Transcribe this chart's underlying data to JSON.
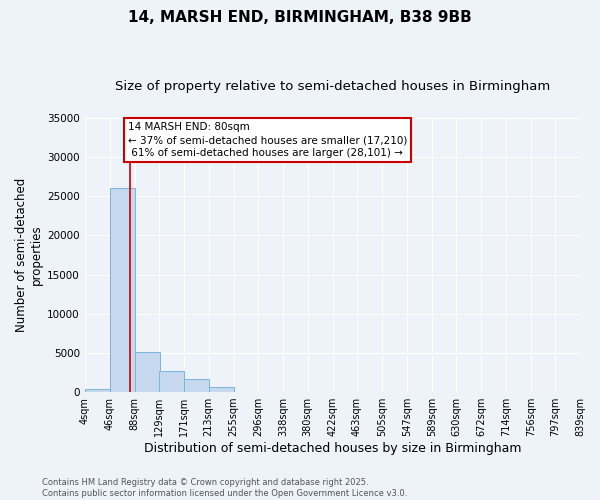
{
  "title": "14, MARSH END, BIRMINGHAM, B38 9BB",
  "subtitle": "Size of property relative to semi-detached houses in Birmingham",
  "xlabel": "Distribution of semi-detached houses by size in Birmingham",
  "ylabel": "Number of semi-detached\nproperties",
  "footnote": "Contains HM Land Registry data © Crown copyright and database right 2025.\nContains public sector information licensed under the Open Government Licence v3.0.",
  "property_label": "14 MARSH END: 80sqm",
  "pct_smaller": 37,
  "pct_larger": 61,
  "n_smaller": 17210,
  "n_larger": 28101,
  "bin_labels": [
    "4sqm",
    "46sqm",
    "88sqm",
    "129sqm",
    "171sqm",
    "213sqm",
    "255sqm",
    "296sqm",
    "338sqm",
    "380sqm",
    "422sqm",
    "463sqm",
    "505sqm",
    "547sqm",
    "589sqm",
    "630sqm",
    "672sqm",
    "714sqm",
    "756sqm",
    "797sqm",
    "839sqm"
  ],
  "bin_edges": [
    4,
    46,
    88,
    129,
    171,
    213,
    255,
    296,
    338,
    380,
    422,
    463,
    505,
    547,
    589,
    630,
    672,
    714,
    756,
    797,
    839
  ],
  "bar_values": [
    400,
    26000,
    5100,
    2700,
    1700,
    700,
    0,
    0,
    0,
    0,
    0,
    0,
    0,
    0,
    0,
    0,
    0,
    0,
    0,
    0,
    0
  ],
  "bar_color": "#c5d8ed",
  "bar_edge_color": "#7ab5d9",
  "vline_x": 80,
  "vline_color": "#cc0000",
  "annotation_box_color": "#cc0000",
  "background_color": "#eef2f9",
  "ylim": [
    0,
    35000
  ],
  "yticks": [
    0,
    5000,
    10000,
    15000,
    20000,
    25000,
    30000,
    35000
  ],
  "title_fontsize": 11,
  "subtitle_fontsize": 9.5,
  "axis_label_fontsize": 8.5,
  "tick_fontsize": 7.5,
  "annotation_fontsize": 7.5,
  "footnote_fontsize": 6
}
